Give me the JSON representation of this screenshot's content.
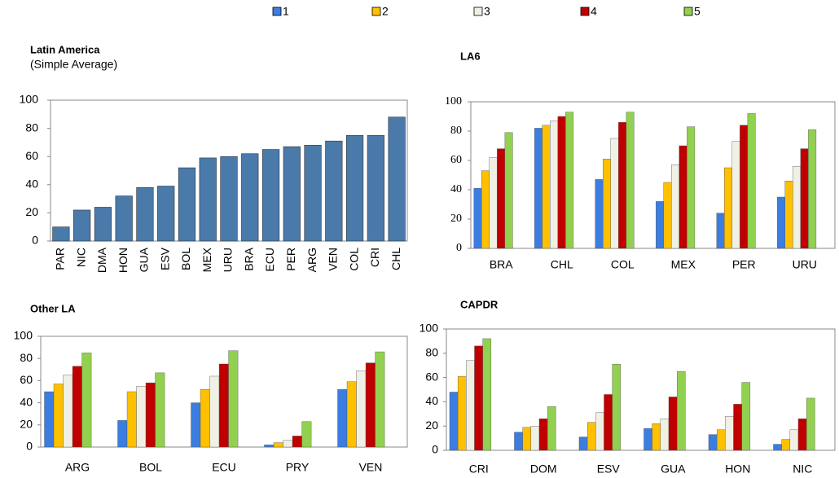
{
  "legend": [
    {
      "name": "1",
      "color": "#3b7de0"
    },
    {
      "name": "2",
      "color": "#ffc000"
    },
    {
      "name": "3",
      "color": "#f0f0e4"
    },
    {
      "name": "4",
      "color": "#c00000"
    },
    {
      "name": "5",
      "color": "#92d050"
    }
  ],
  "chart_data": [
    {
      "type": "bar",
      "title": "Latin America",
      "subtitle": "(Simple Average)",
      "color": "#4a7aaa",
      "categories": [
        "PAR",
        "NIC",
        "DMA",
        "HON",
        "GUA",
        "ESV",
        "BOL",
        "MEX",
        "URU",
        "BRA",
        "ECU",
        "PER",
        "ARG",
        "VEN",
        "COL",
        "CRI",
        "CHL"
      ],
      "values": [
        10,
        22,
        24,
        32,
        38,
        39,
        52,
        59,
        60,
        62,
        65,
        67,
        68,
        71,
        75,
        75,
        88
      ],
      "ylim": [
        0,
        100
      ],
      "yticks": [
        0,
        20,
        40,
        60,
        80,
        100
      ]
    },
    {
      "type": "grouped-bar",
      "title": "LA6",
      "categories": [
        "BRA",
        "CHL",
        "COL",
        "MEX",
        "PER",
        "URU"
      ],
      "series": [
        {
          "color": "#3b7de0",
          "values": [
            41,
            82,
            47,
            32,
            24,
            35
          ]
        },
        {
          "color": "#ffc000",
          "values": [
            53,
            84,
            61,
            45,
            55,
            46
          ]
        },
        {
          "color": "#f0f0e4",
          "values": [
            62,
            87,
            75,
            57,
            73,
            56
          ]
        },
        {
          "color": "#c00000",
          "values": [
            68,
            90,
            86,
            70,
            84,
            68
          ]
        },
        {
          "color": "#92d050",
          "values": [
            79,
            93,
            93,
            83,
            92,
            81
          ]
        }
      ],
      "ylim": [
        0,
        100
      ],
      "yticks": [
        0,
        20,
        40,
        60,
        80,
        100
      ]
    },
    {
      "type": "grouped-bar",
      "title": "Other LA",
      "categories": [
        "ARG",
        "BOL",
        "ECU",
        "PRY",
        "VEN"
      ],
      "series": [
        {
          "color": "#3b7de0",
          "values": [
            50,
            24,
            40,
            2,
            52
          ]
        },
        {
          "color": "#ffc000",
          "values": [
            57,
            50,
            52,
            4,
            59
          ]
        },
        {
          "color": "#f0f0e4",
          "values": [
            65,
            55,
            64,
            6,
            69
          ]
        },
        {
          "color": "#c00000",
          "values": [
            73,
            58,
            75,
            10,
            76
          ]
        },
        {
          "color": "#92d050",
          "values": [
            85,
            67,
            87,
            23,
            86
          ]
        }
      ],
      "ylim": [
        0,
        100
      ],
      "yticks": [
        0,
        20,
        40,
        60,
        80,
        100
      ]
    },
    {
      "type": "grouped-bar",
      "title": "CAPDR",
      "categories": [
        "CRI",
        "DOM",
        "ESV",
        "GUA",
        "HON",
        "NIC"
      ],
      "series": [
        {
          "color": "#3b7de0",
          "values": [
            48,
            15,
            11,
            18,
            13,
            5
          ]
        },
        {
          "color": "#ffc000",
          "values": [
            61,
            19,
            23,
            22,
            17,
            9
          ]
        },
        {
          "color": "#f0f0e4",
          "values": [
            74,
            20,
            31,
            26,
            28,
            17
          ]
        },
        {
          "color": "#c00000",
          "values": [
            86,
            26,
            46,
            44,
            38,
            26
          ]
        },
        {
          "color": "#92d050",
          "values": [
            92,
            36,
            71,
            65,
            56,
            43
          ]
        }
      ],
      "ylim": [
        0,
        100
      ],
      "yticks": [
        0,
        20,
        40,
        60,
        80,
        100
      ]
    }
  ]
}
